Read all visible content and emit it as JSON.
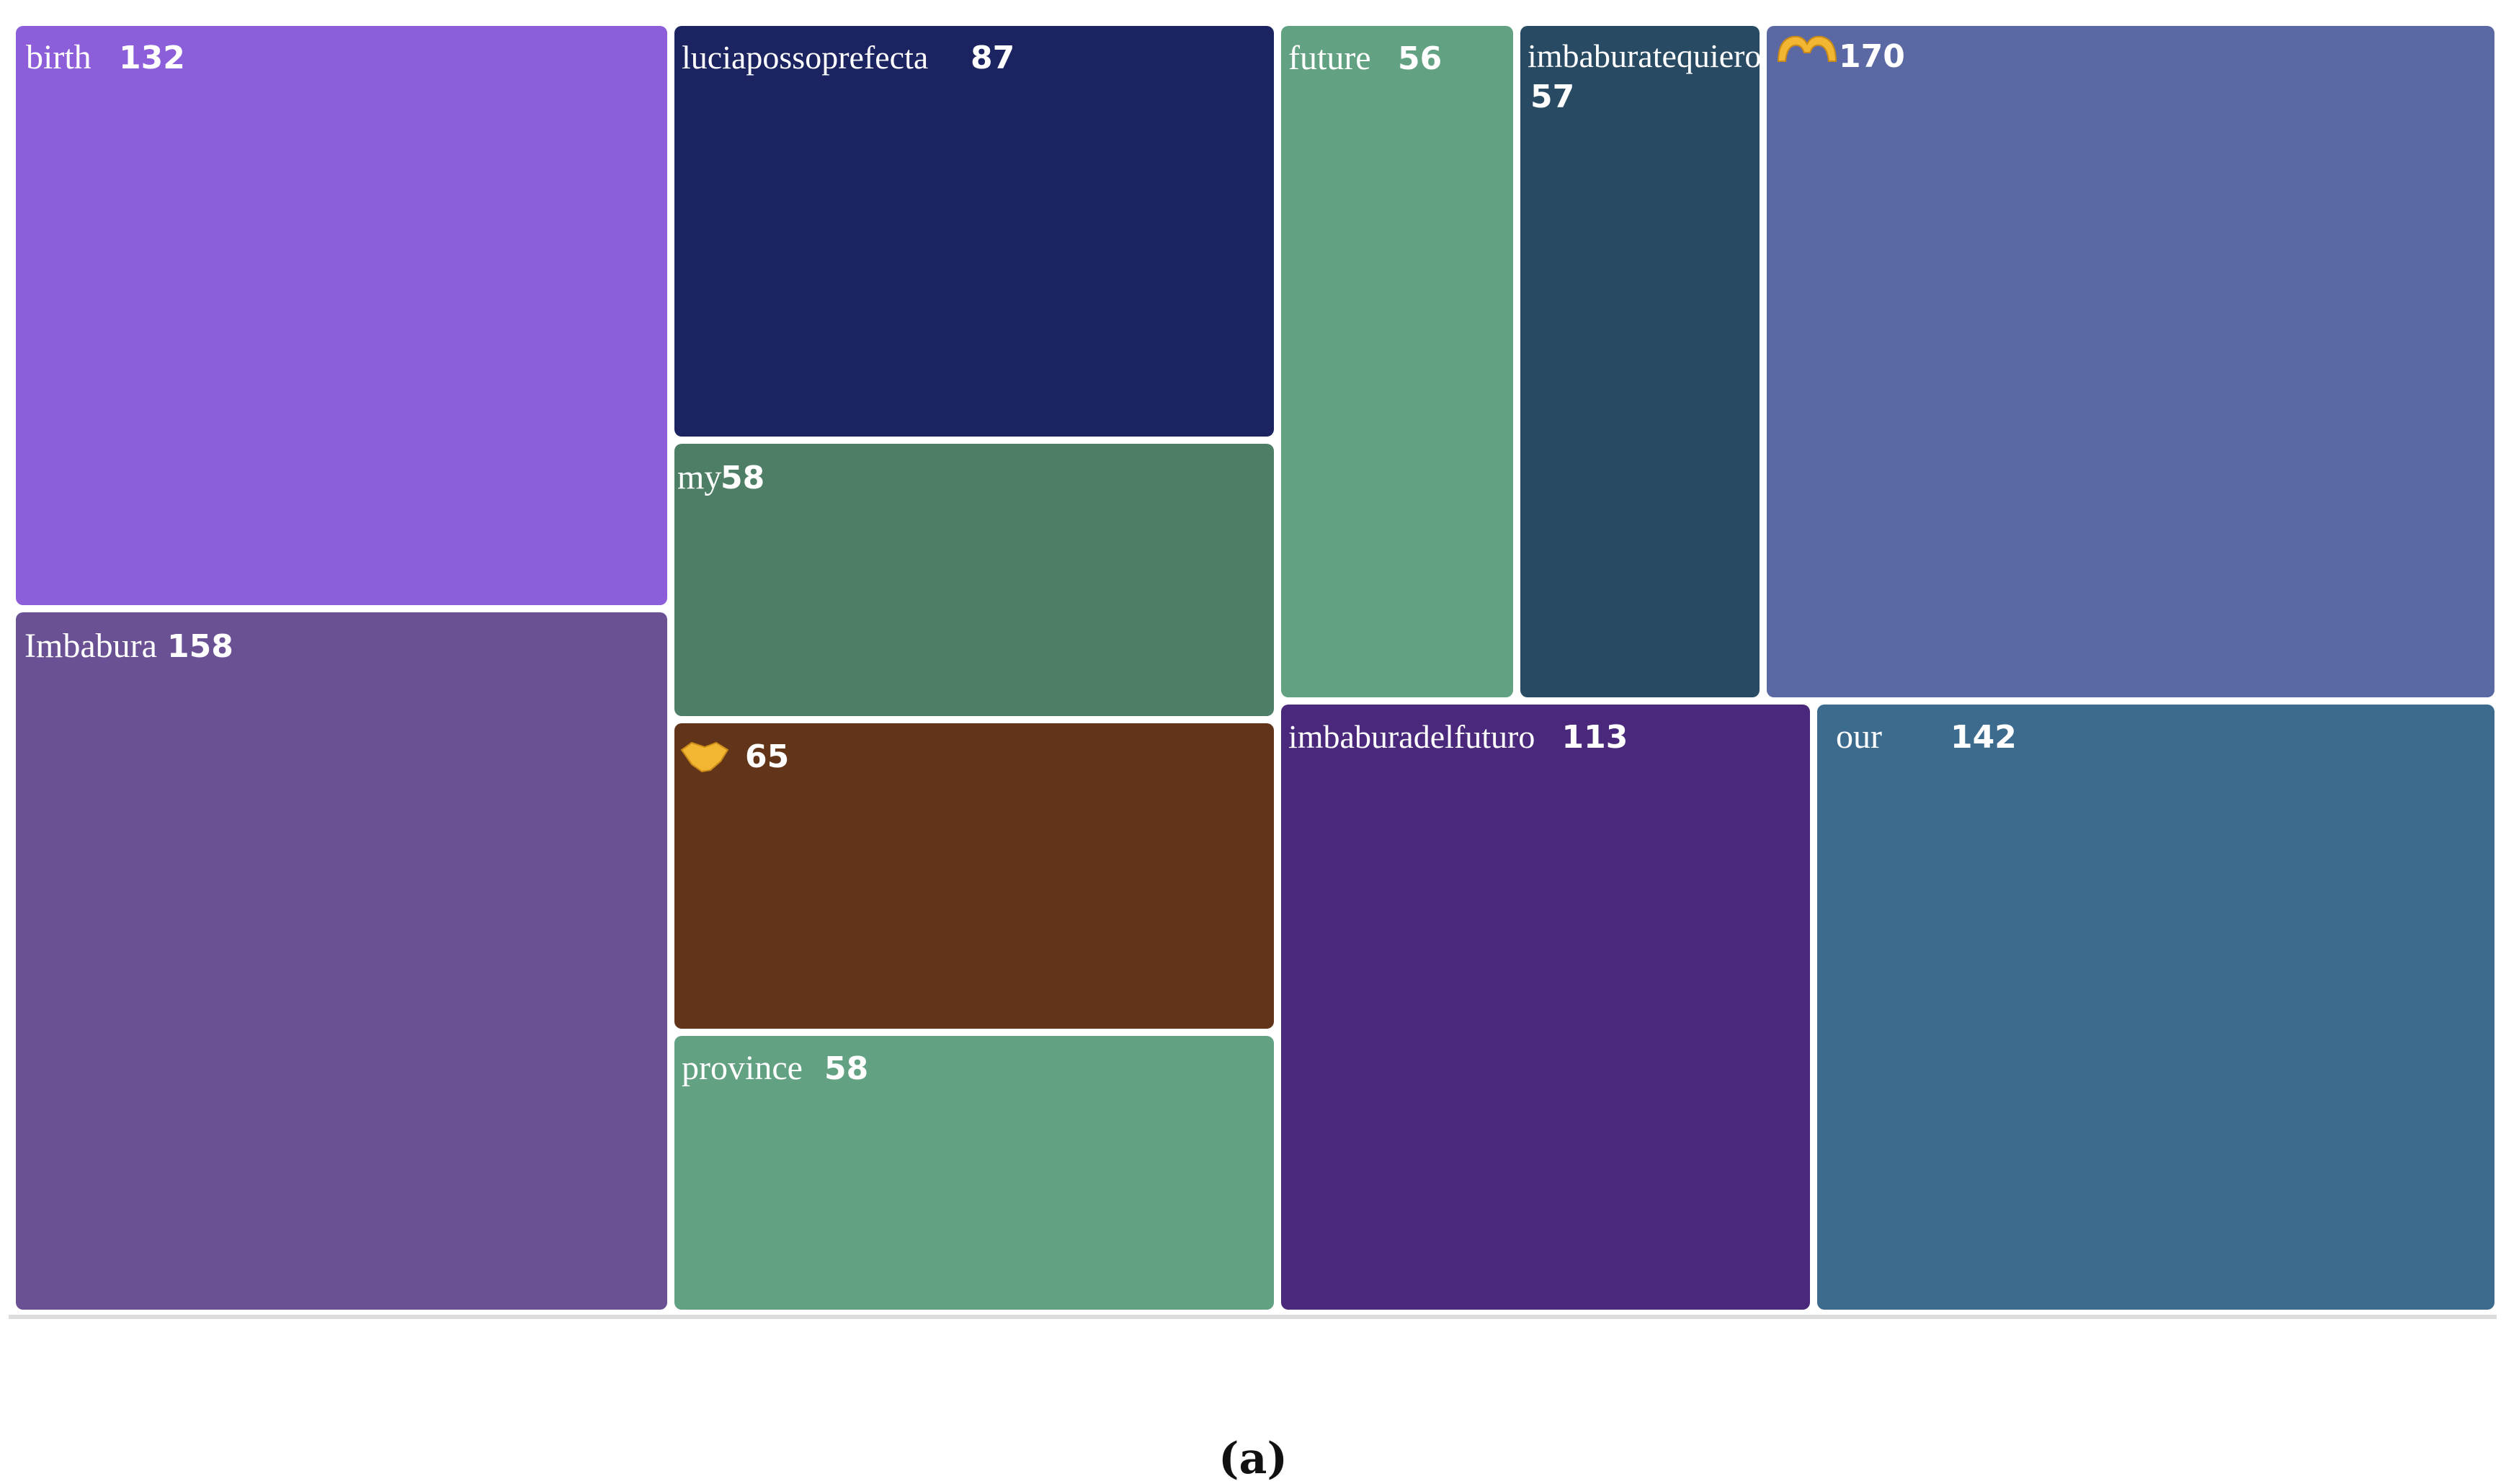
{
  "chart_data": {
    "type": "treemap",
    "items": [
      {
        "label": "birth",
        "value": 132,
        "color": "#8c5ed9"
      },
      {
        "label": "Imbabura",
        "value": 158,
        "color": "#6a5193"
      },
      {
        "label": "luciapossoprefecta",
        "value": 87,
        "color": "#1b2460"
      },
      {
        "label": "my",
        "value": 58,
        "color": "#4e7f66"
      },
      {
        "label": "",
        "icon": "handshake-emoji",
        "value": 65,
        "color": "#62351a"
      },
      {
        "label": "province",
        "value": 58,
        "color": "#62a282"
      },
      {
        "label": "future",
        "value": 56,
        "color": "#62a282"
      },
      {
        "label": "imbaburatequiero",
        "value": 57,
        "color": "#284a63"
      },
      {
        "label": "",
        "icon": "raising-hands-emoji",
        "value": 170,
        "color": "#5a69a4"
      },
      {
        "label": "imbaburadelfuturo",
        "value": 113,
        "color": "#4a297c"
      },
      {
        "label": "our",
        "value": 142,
        "color": "#3d6b8e"
      }
    ]
  },
  "caption": "(a)"
}
